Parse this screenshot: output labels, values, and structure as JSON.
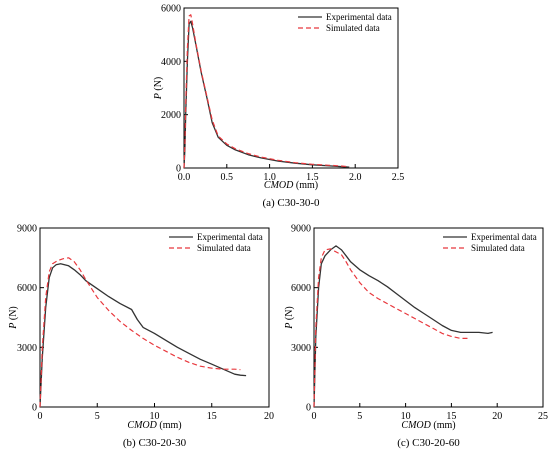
{
  "chart_data": [
    {
      "type": "line",
      "caption": "(a) C30-30-0",
      "xlabel_italic": "CMOD",
      "xlabel_unit": " (mm)",
      "ylabel_italic": "P",
      "ylabel_unit": " (N)",
      "xlim": [
        0,
        2.5
      ],
      "ylim": [
        0,
        6000
      ],
      "xticks": [
        0.0,
        0.5,
        1.0,
        1.5,
        2.0,
        2.5
      ],
      "xtick_labels": [
        "0.0",
        "0.5",
        "1.0",
        "1.5",
        "2.0",
        "2.5"
      ],
      "yticks": [
        0,
        2000,
        4000,
        6000
      ],
      "ytick_labels": [
        "0",
        "2000",
        "4000",
        "6000"
      ],
      "legend": "top-right",
      "series": [
        {
          "name": "Experimental data",
          "style": "solid",
          "color": "#333333",
          "x": [
            0,
            0.01,
            0.02,
            0.04,
            0.06,
            0.08,
            0.1,
            0.14,
            0.2,
            0.27,
            0.33,
            0.4,
            0.5,
            0.6,
            0.75,
            0.9,
            1.1,
            1.3,
            1.5,
            1.7,
            1.85,
            1.93
          ],
          "y": [
            0,
            700,
            2000,
            4000,
            5400,
            5500,
            5250,
            4600,
            3600,
            2600,
            1700,
            1150,
            850,
            680,
            500,
            380,
            260,
            180,
            120,
            80,
            50,
            30
          ]
        },
        {
          "name": "Simulated data",
          "style": "dashed",
          "color": "#e8383d",
          "x": [
            0,
            0.01,
            0.02,
            0.04,
            0.06,
            0.08,
            0.1,
            0.14,
            0.2,
            0.27,
            0.33,
            0.4,
            0.5,
            0.6,
            0.75,
            0.9,
            1.1,
            1.3,
            1.5,
            1.7,
            1.85,
            1.93
          ],
          "y": [
            0,
            900,
            2400,
            4500,
            5700,
            5750,
            5400,
            4650,
            3650,
            2650,
            1800,
            1200,
            900,
            720,
            540,
            410,
            290,
            200,
            140,
            100,
            70,
            50
          ]
        }
      ]
    },
    {
      "type": "line",
      "caption": "(b) C30-20-30",
      "xlabel_italic": "CMOD",
      "xlabel_unit": " (mm)",
      "ylabel_italic": "P",
      "ylabel_unit": " (N)",
      "xlim": [
        0,
        20
      ],
      "ylim": [
        0,
        9000
      ],
      "xticks": [
        0,
        5,
        10,
        15,
        20
      ],
      "xtick_labels": [
        "0",
        "5",
        "10",
        "15",
        "20"
      ],
      "yticks": [
        0,
        3000,
        6000,
        9000
      ],
      "ytick_labels": [
        "0",
        "3000",
        "6000",
        "9000"
      ],
      "legend": "top-right",
      "series": [
        {
          "name": "Experimental data",
          "style": "solid",
          "color": "#333333",
          "x": [
            0,
            0.2,
            0.5,
            0.8,
            1.1,
            1.4,
            1.8,
            2.5,
            3.0,
            3.5,
            4.0,
            4.5,
            5.0,
            6.0,
            7.0,
            8.0,
            8.5,
            9.0,
            10.0,
            11.0,
            12.0,
            13.0,
            14.0,
            15.0,
            16.0,
            17.0,
            17.5,
            18.0
          ],
          "y": [
            0,
            2500,
            5000,
            6500,
            7000,
            7150,
            7200,
            7100,
            6900,
            6650,
            6350,
            6150,
            5950,
            5550,
            5200,
            4900,
            4400,
            4000,
            3700,
            3350,
            3000,
            2700,
            2400,
            2150,
            1900,
            1650,
            1600,
            1580
          ]
        },
        {
          "name": "Simulated data",
          "style": "dashed",
          "color": "#e8383d",
          "x": [
            0,
            0.2,
            0.5,
            0.8,
            1.1,
            1.5,
            2.0,
            2.5,
            3.0,
            3.5,
            4.0,
            5.0,
            6.0,
            7.0,
            8.0,
            9.0,
            10.0,
            11.0,
            12.0,
            13.0,
            14.0,
            15.0,
            16.0,
            17.0,
            17.5
          ],
          "y": [
            0,
            3000,
            5500,
            6800,
            7200,
            7350,
            7450,
            7500,
            7300,
            6900,
            6400,
            5500,
            4850,
            4300,
            3850,
            3450,
            3100,
            2800,
            2500,
            2250,
            2050,
            1950,
            1900,
            1900,
            1880
          ]
        }
      ]
    },
    {
      "type": "line",
      "caption": "(c) C30-20-60",
      "xlabel_italic": "CMOD",
      "xlabel_unit": " (mm)",
      "ylabel_italic": "P",
      "ylabel_unit": " (N)",
      "xlim": [
        0,
        25
      ],
      "ylim": [
        0,
        9000
      ],
      "xticks": [
        0,
        5,
        10,
        15,
        20,
        25
      ],
      "xtick_labels": [
        "0",
        "5",
        "10",
        "15",
        "20",
        "25"
      ],
      "yticks": [
        0,
        3000,
        6000,
        9000
      ],
      "ytick_labels": [
        "0",
        "3000",
        "6000",
        "9000"
      ],
      "legend": "top-right",
      "series": [
        {
          "name": "Experimental data",
          "style": "solid",
          "color": "#333333",
          "x": [
            0,
            0.2,
            0.5,
            0.8,
            1.2,
            1.8,
            2.4,
            3.0,
            3.5,
            4.0,
            5.0,
            6.0,
            7.0,
            8.0,
            9.0,
            10.0,
            11.0,
            12.0,
            13.0,
            14.0,
            15.0,
            16.0,
            17.0,
            18.0,
            19.0,
            19.5
          ],
          "y": [
            0,
            3500,
            6000,
            7200,
            7600,
            7900,
            8100,
            7900,
            7600,
            7300,
            6900,
            6600,
            6350,
            6050,
            5700,
            5350,
            5000,
            4700,
            4400,
            4100,
            3850,
            3750,
            3750,
            3750,
            3700,
            3750
          ]
        },
        {
          "name": "Simulated data",
          "style": "dashed",
          "color": "#e8383d",
          "x": [
            0,
            0.2,
            0.5,
            0.8,
            1.2,
            1.8,
            2.4,
            3.0,
            3.5,
            4.0,
            5.0,
            6.0,
            7.0,
            8.0,
            9.0,
            10.0,
            11.0,
            12.0,
            13.0,
            14.0,
            15.0,
            16.0,
            17.0
          ],
          "y": [
            0,
            4000,
            6500,
            7500,
            7900,
            7950,
            7800,
            7650,
            7300,
            6900,
            6250,
            5750,
            5450,
            5200,
            4950,
            4700,
            4450,
            4200,
            3950,
            3700,
            3550,
            3450,
            3450
          ]
        }
      ]
    }
  ]
}
